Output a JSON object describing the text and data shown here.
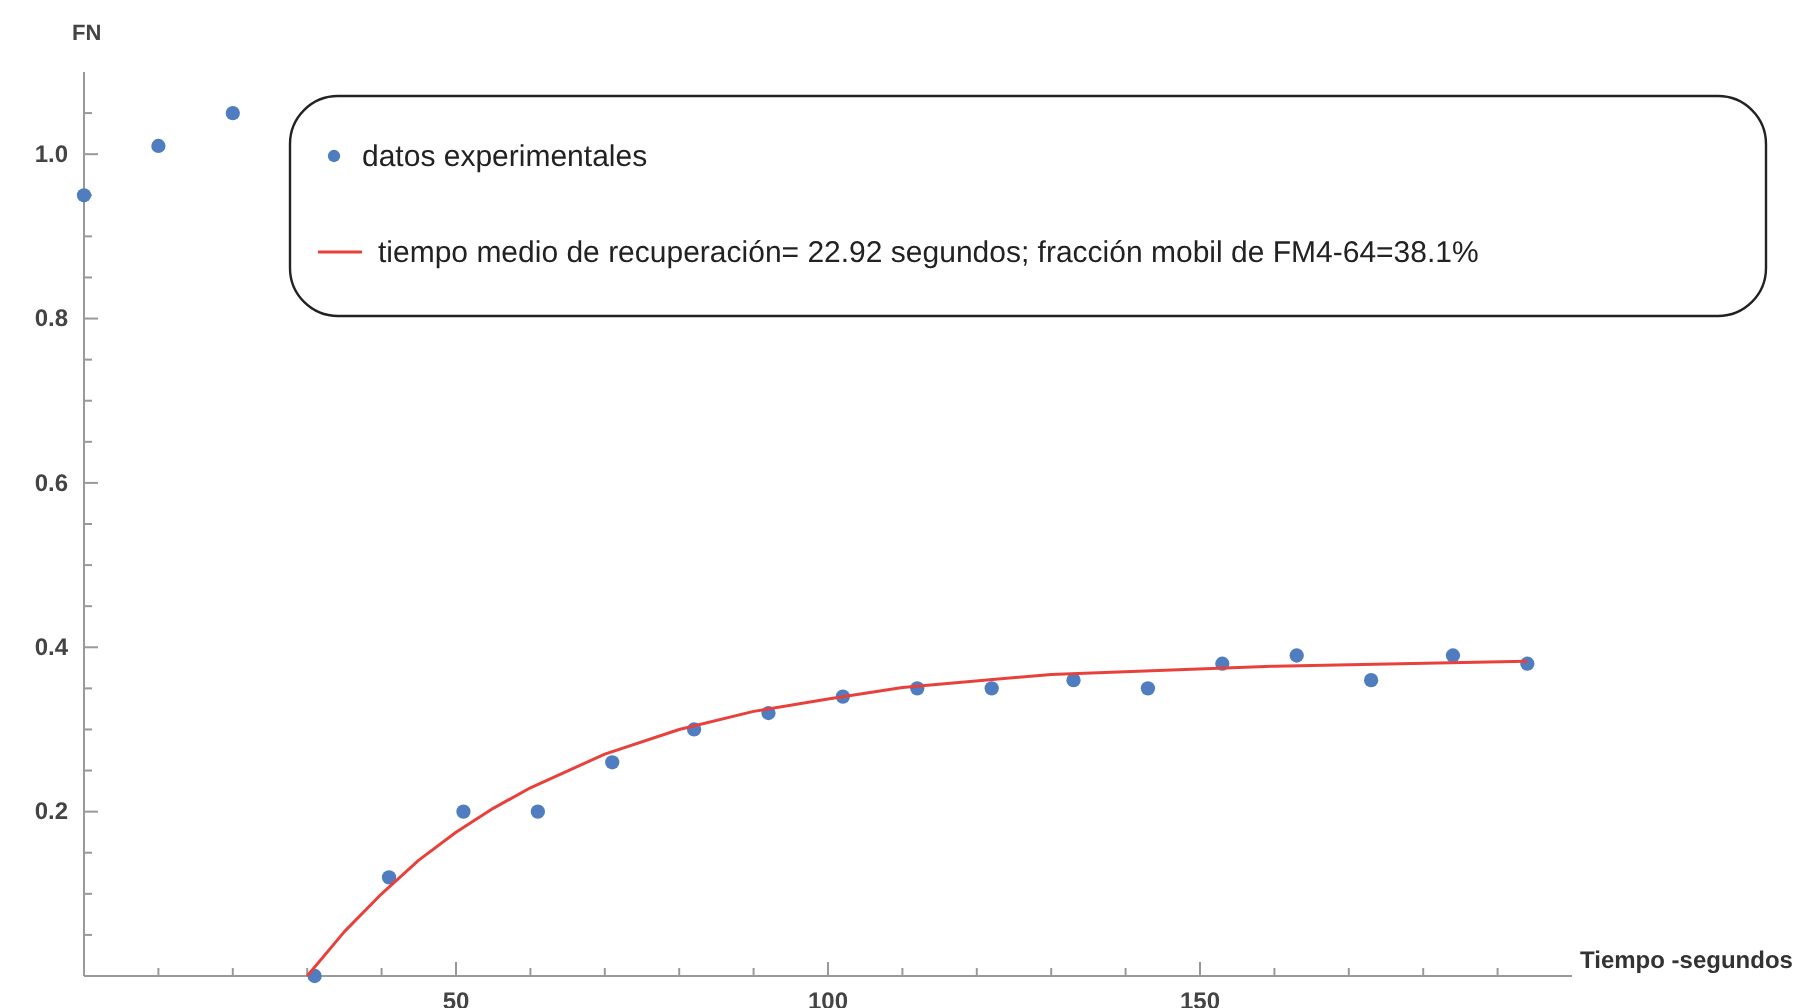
{
  "chart_data": {
    "type": "scatter",
    "xlabel": "Tiempo -segundos",
    "ylabel": "FN",
    "xlim": [
      0,
      200
    ],
    "ylim": [
      0,
      1.1
    ],
    "xticks": [
      {
        "value": 10,
        "label": null
      },
      {
        "value": 20,
        "label": null
      },
      {
        "value": 30,
        "label": null
      },
      {
        "value": 40,
        "label": null
      },
      50,
      {
        "value": 60,
        "label": null
      },
      {
        "value": 70,
        "label": null
      },
      {
        "value": 80,
        "label": null
      },
      {
        "value": 90,
        "label": null
      },
      100,
      {
        "value": 110,
        "label": null
      },
      {
        "value": 120,
        "label": null
      },
      {
        "value": 130,
        "label": null
      },
      {
        "value": 140,
        "label": null
      },
      150,
      {
        "value": 160,
        "label": null
      },
      {
        "value": 170,
        "label": null
      },
      {
        "value": 180,
        "label": null
      },
      {
        "value": 190,
        "label": null
      }
    ],
    "yticks": [
      {
        "value": 0.05,
        "label": null
      },
      {
        "value": 0.1,
        "label": null
      },
      {
        "value": 0.15,
        "label": null
      },
      {
        "value": 0.2,
        "label": "0.2"
      },
      {
        "value": 0.25,
        "label": null
      },
      {
        "value": 0.3,
        "label": null
      },
      {
        "value": 0.35,
        "label": null
      },
      {
        "value": 0.4,
        "label": "0.4"
      },
      {
        "value": 0.45,
        "label": null
      },
      {
        "value": 0.5,
        "label": null
      },
      {
        "value": 0.55,
        "label": null
      },
      {
        "value": 0.6,
        "label": "0.6"
      },
      {
        "value": 0.65,
        "label": null
      },
      {
        "value": 0.7,
        "label": null
      },
      {
        "value": 0.75,
        "label": null
      },
      {
        "value": 0.8,
        "label": "0.8"
      },
      {
        "value": 0.85,
        "label": null
      },
      {
        "value": 0.9,
        "label": null
      },
      {
        "value": 0.95,
        "label": null
      },
      {
        "value": 1.0,
        "label": "1.0"
      },
      {
        "value": 1.05,
        "label": null
      }
    ],
    "legend": "top right",
    "grid": false,
    "series": [
      {
        "name": "datos experimentales",
        "marker": "circle",
        "color": "#4f7dbf",
        "x": [
          0,
          10,
          20,
          31,
          41,
          51,
          61,
          71,
          82,
          92,
          102,
          112,
          122,
          133,
          143,
          153,
          163,
          173,
          184,
          194
        ],
        "values": [
          0.95,
          1.01,
          1.05,
          0,
          0.12,
          0.2,
          0.2,
          0.26,
          0.3,
          0.32,
          0.34,
          0.35,
          0.35,
          0.36,
          0.35,
          0.38,
          0.39,
          0.36,
          0.39,
          0.38
        ]
      },
      {
        "name": "tiempo medio de recuperación= 22.92 segundos; fracción mobil de FM4-64=38.1%",
        "type": "line",
        "marker": "none",
        "line_style": "solid",
        "color": "#e8413c",
        "x": [
          30,
          35,
          40,
          45,
          50,
          55,
          60,
          70,
          80,
          90,
          100,
          110,
          130,
          160,
          194
        ],
        "values": [
          0,
          0.054,
          0.1,
          0.141,
          0.175,
          0.204,
          0.229,
          0.27,
          0.3,
          0.322,
          0.337,
          0.351,
          0.367,
          0.377,
          0.383
        ]
      }
    ]
  }
}
